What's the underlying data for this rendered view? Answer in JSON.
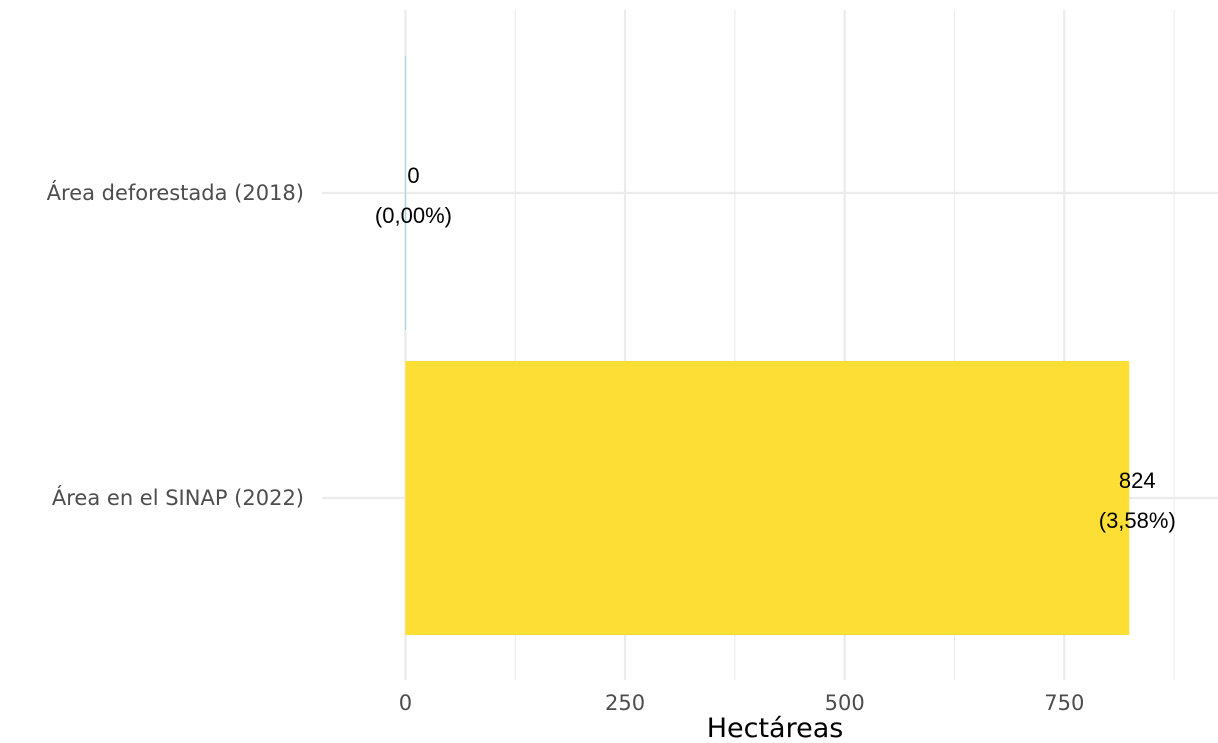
{
  "chart_data": {
    "type": "bar",
    "orientation": "horizontal",
    "categories": [
      "Área deforestada (2018)",
      "Área en el SINAP (2022)"
    ],
    "values": [
      0,
      824
    ],
    "data_labels": [
      {
        "value": "0",
        "percent": "(0,00%)"
      },
      {
        "value": "824",
        "percent": "(3,58%)"
      }
    ],
    "colors": [
      "#a6d8e6",
      "#fdde34"
    ],
    "title": "",
    "xlabel": "Hectáreas",
    "ylabel": "",
    "xlim": [
      -95,
      925
    ],
    "xticks": [
      0,
      250,
      500,
      750
    ],
    "xtick_labels": [
      "0",
      "250",
      "500",
      "750"
    ],
    "minor_xticks": [
      125,
      375,
      625,
      875
    ],
    "grid": true,
    "legend": "none"
  }
}
